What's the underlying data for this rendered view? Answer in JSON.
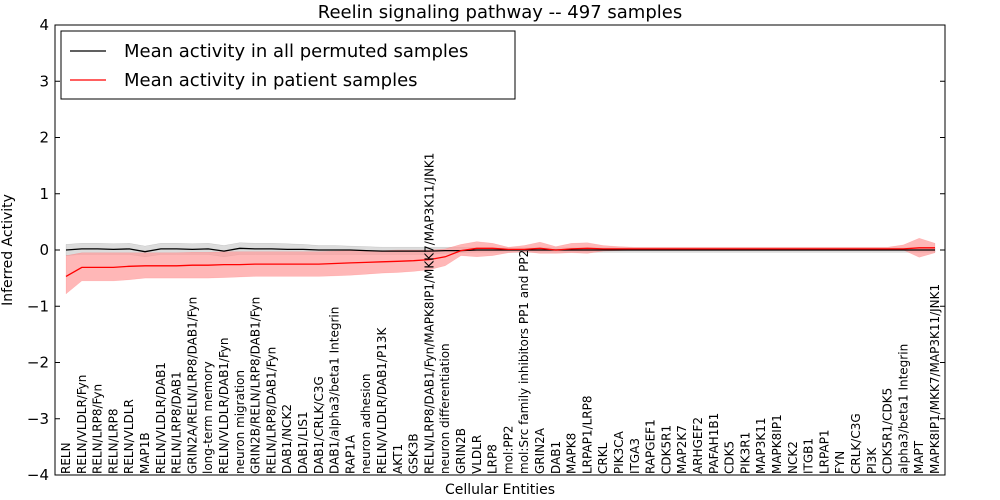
{
  "chart_data": {
    "type": "line",
    "title": "Reelin signaling pathway -- 497 samples",
    "xlabel": "Cellular Entities",
    "ylabel": "Inferred Activity",
    "ylim": [
      -4,
      4
    ],
    "yticks": [
      -4,
      -3,
      -2,
      -1,
      0,
      1,
      2,
      3,
      4
    ],
    "ytick_labels": [
      "−4",
      "−3",
      "−2",
      "−1",
      "0",
      "1",
      "2",
      "3",
      "4"
    ],
    "legend_position": "top-left",
    "categories": [
      "RELN",
      "RELN/VLDLR/Fyn",
      "RELN/LRP8/Fyn",
      "RELN/LRP8",
      "RELN/VLDLR",
      "MAP1B",
      "RELN/VLDLR/DAB1",
      "RELN/LRP8/DAB1",
      "GRIN2A/RELN/LRP8/DAB1/Fyn",
      "long-term memory",
      "RELN/VLDLR/DAB1/Fyn",
      "neuron migration",
      "GRIN2B/RELN/LRP8/DAB1/Fyn",
      "RELN/LRP8/DAB1/Fyn",
      "DAB1/NCK2",
      "DAB1/LIS1",
      "DAB1/CRLK/C3G",
      "DAB1/alpha3/beta1 Integrin",
      "RAP1A",
      "neuron adhesion",
      "RELN/VLDLR/DAB1/P13K",
      "AKT1",
      "GSK3B",
      "RELN/LRP8/DAB1/Fyn/MAPK8IP1/MKK7/MAP3K11/JNK1",
      "neuron differentiation",
      "GRIN2B",
      "VLDLR",
      "LRP8",
      "mol:PP2",
      "mol:Src family inhibitors PP1 and PP2",
      "GRIN2A",
      "DAB1",
      "MAPK8",
      "LRPAP1/LRP8",
      "CRKL",
      "PIK3CA",
      "ITGA3",
      "RAPGEF1",
      "CDK5R1",
      "MAP2K7",
      "ARHGEF2",
      "PAFAH1B1",
      "CDK5",
      "PIK3R1",
      "MAP3K11",
      "MAPK8IP1",
      "NCK2",
      "ITGB1",
      "LRPAP1",
      "FYN",
      "CRLK/C3G",
      "PI3K",
      "CDK5R1/CDK5",
      "alpha3/beta1 Integrin",
      "MAPT",
      "MAPK8IP1/MKK7/MAP3K11/JNK1"
    ],
    "series": [
      {
        "name": "Mean activity in all permuted samples",
        "color": "#000000",
        "band_color": "#bfbfbf",
        "values": [
          0.0,
          0.02,
          0.02,
          0.01,
          0.02,
          -0.03,
          0.02,
          0.02,
          0.01,
          0.02,
          -0.02,
          0.03,
          0.02,
          0.02,
          0.01,
          0.01,
          0.0,
          0.0,
          0.0,
          -0.01,
          -0.02,
          -0.02,
          -0.02,
          -0.02,
          -0.01,
          -0.01,
          0.0,
          0.0,
          0.0,
          0.0,
          0.0,
          0.0,
          0.0,
          0.0,
          0.0,
          0.0,
          0.0,
          0.0,
          0.0,
          0.0,
          0.0,
          0.0,
          0.0,
          0.0,
          0.0,
          0.0,
          0.0,
          0.0,
          0.0,
          0.0,
          0.0,
          0.0,
          0.0,
          0.0,
          0.0,
          0.0
        ],
        "lower": [
          -0.1,
          -0.08,
          -0.08,
          -0.08,
          -0.08,
          -0.12,
          -0.08,
          -0.08,
          -0.08,
          -0.08,
          -0.12,
          -0.08,
          -0.08,
          -0.08,
          -0.08,
          -0.08,
          -0.08,
          -0.08,
          -0.08,
          -0.08,
          -0.08,
          -0.08,
          -0.08,
          -0.08,
          -0.06,
          -0.05,
          -0.04,
          -0.04,
          -0.04,
          -0.04,
          -0.04,
          -0.04,
          -0.04,
          -0.04,
          -0.04,
          -0.04,
          -0.04,
          -0.04,
          -0.04,
          -0.04,
          -0.04,
          -0.04,
          -0.04,
          -0.04,
          -0.04,
          -0.04,
          -0.04,
          -0.04,
          -0.04,
          -0.04,
          -0.04,
          -0.04,
          -0.04,
          -0.04,
          -0.04,
          -0.04
        ],
        "upper": [
          0.1,
          0.12,
          0.12,
          0.11,
          0.12,
          0.07,
          0.12,
          0.12,
          0.11,
          0.12,
          0.08,
          0.13,
          0.12,
          0.12,
          0.11,
          0.1,
          0.08,
          0.08,
          0.07,
          0.06,
          0.05,
          0.05,
          0.05,
          0.05,
          0.05,
          0.05,
          0.04,
          0.04,
          0.04,
          0.04,
          0.04,
          0.04,
          0.04,
          0.04,
          0.04,
          0.04,
          0.04,
          0.04,
          0.04,
          0.04,
          0.04,
          0.04,
          0.04,
          0.04,
          0.04,
          0.04,
          0.04,
          0.04,
          0.04,
          0.04,
          0.04,
          0.04,
          0.04,
          0.04,
          0.04,
          0.04
        ]
      },
      {
        "name": "Mean activity in patient samples",
        "color": "#ff0000",
        "band_color": "#ff9999",
        "values": [
          -0.47,
          -0.31,
          -0.31,
          -0.31,
          -0.29,
          -0.28,
          -0.28,
          -0.28,
          -0.27,
          -0.27,
          -0.26,
          -0.26,
          -0.25,
          -0.25,
          -0.25,
          -0.25,
          -0.25,
          -0.24,
          -0.23,
          -0.22,
          -0.21,
          -0.2,
          -0.19,
          -0.17,
          -0.12,
          -0.01,
          0.03,
          0.03,
          0.01,
          0.01,
          0.03,
          0.0,
          0.02,
          0.03,
          0.02,
          0.02,
          0.02,
          0.02,
          0.02,
          0.02,
          0.02,
          0.02,
          0.02,
          0.02,
          0.02,
          0.02,
          0.02,
          0.02,
          0.02,
          0.02,
          0.02,
          0.02,
          0.02,
          0.02,
          0.04,
          0.04
        ],
        "lower": [
          -0.78,
          -0.55,
          -0.55,
          -0.55,
          -0.53,
          -0.5,
          -0.5,
          -0.5,
          -0.5,
          -0.5,
          -0.49,
          -0.48,
          -0.47,
          -0.47,
          -0.47,
          -0.47,
          -0.47,
          -0.46,
          -0.45,
          -0.43,
          -0.41,
          -0.4,
          -0.38,
          -0.35,
          -0.28,
          -0.1,
          -0.12,
          -0.1,
          -0.05,
          -0.03,
          -0.06,
          -0.06,
          -0.05,
          -0.06,
          -0.02,
          -0.01,
          0.0,
          0.0,
          0.0,
          0.0,
          0.0,
          0.0,
          0.0,
          0.0,
          0.0,
          0.0,
          0.0,
          0.0,
          0.0,
          0.0,
          0.0,
          0.0,
          0.0,
          0.0,
          -0.13,
          -0.05
        ],
        "upper": [
          -0.1,
          -0.05,
          -0.05,
          -0.05,
          -0.05,
          -0.05,
          -0.05,
          -0.05,
          -0.04,
          -0.04,
          -0.03,
          -0.03,
          -0.03,
          -0.03,
          -0.03,
          -0.03,
          -0.03,
          -0.02,
          -0.01,
          -0.01,
          -0.01,
          0.0,
          0.0,
          0.0,
          0.02,
          0.1,
          0.15,
          0.12,
          0.05,
          0.08,
          0.14,
          0.06,
          0.12,
          0.13,
          0.08,
          0.06,
          0.05,
          0.05,
          0.05,
          0.05,
          0.05,
          0.05,
          0.05,
          0.05,
          0.05,
          0.05,
          0.05,
          0.05,
          0.05,
          0.05,
          0.05,
          0.05,
          0.05,
          0.09,
          0.21,
          0.12
        ]
      }
    ]
  }
}
